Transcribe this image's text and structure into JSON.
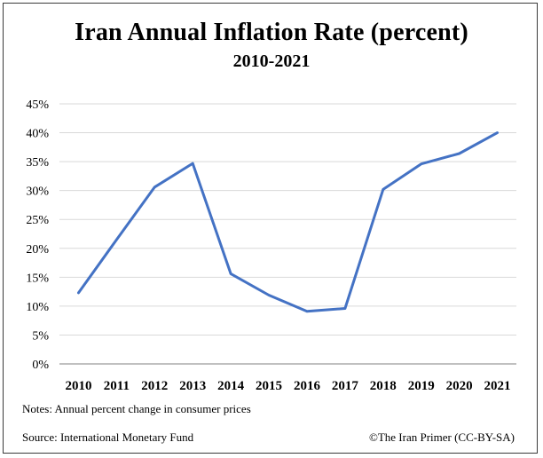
{
  "chart_data": {
    "type": "line",
    "title": "Iran Annual Inflation Rate (percent)",
    "subtitle": "2010-2021",
    "xlabel": "",
    "ylabel": "",
    "ylim": [
      0,
      45
    ],
    "yticks": [
      0,
      5,
      10,
      15,
      20,
      25,
      30,
      35,
      40,
      45
    ],
    "ytick_labels": [
      "0%",
      "5%",
      "10%",
      "15%",
      "20%",
      "25%",
      "30%",
      "35%",
      "40%",
      "45%"
    ],
    "grid": true,
    "legend": "none",
    "categories": [
      "2010",
      "2011",
      "2012",
      "2013",
      "2014",
      "2015",
      "2016",
      "2017",
      "2018",
      "2019",
      "2020",
      "2021"
    ],
    "series": [
      {
        "name": "Annual inflation rate",
        "color": "#4472C4",
        "values": [
          12.3,
          21.5,
          30.6,
          34.7,
          15.6,
          11.9,
          9.1,
          9.6,
          30.2,
          34.6,
          36.4,
          40.0
        ]
      }
    ],
    "gridline_color": "#d9d9d9",
    "axis_color": "#808080"
  },
  "notes": "Notes: Annual percent change in consumer prices",
  "source": "Source: International Monetary Fund",
  "credit": "©The Iran Primer  (CC-BY-SA)"
}
